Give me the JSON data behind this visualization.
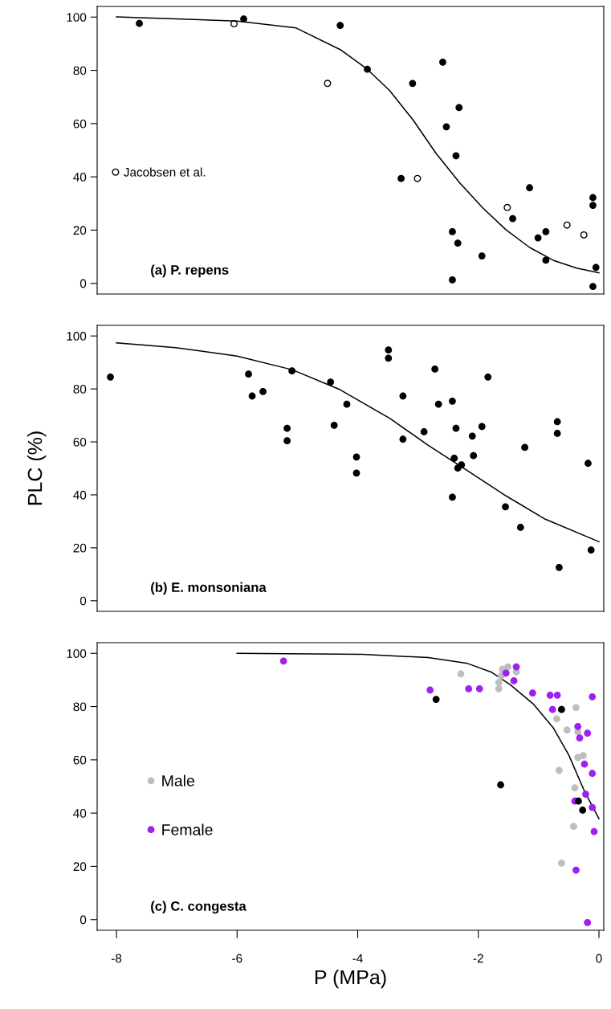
{
  "chart_data": [
    {
      "type": "scatter",
      "title": "(a) P. repens",
      "xlim": [
        -8.32,
        0.08
      ],
      "ylim": [
        -4,
        104
      ],
      "yticks": [
        0,
        20,
        40,
        60,
        80,
        100
      ],
      "tick_labels": "y",
      "grid": false,
      "legend": "left",
      "marker": "circle",
      "series": [
        {
          "color": "#000000",
          "x": [
            -7.62,
            -5.89,
            -4.29,
            -3.84,
            -3.28,
            -3.09,
            -2.59,
            -2.53,
            -2.32,
            -2.37,
            -2.43,
            -2.34,
            -2.43,
            -1.94,
            -1.43,
            -1.15,
            -1.01,
            -0.88,
            -0.88,
            -0.1,
            -0.1,
            -0.05,
            -0.1
          ],
          "values": [
            97.6,
            99.3,
            96.9,
            80.4,
            39.4,
            75.1,
            83.1,
            58.8,
            66.0,
            47.9,
            19.4,
            15.1,
            1.3,
            10.3,
            24.3,
            35.9,
            17.1,
            19.4,
            8.7,
            32.2,
            29.3,
            6.0,
            -1.2
          ]
        },
        {
          "name": "Jacobsen et al.",
          "color": "#000000",
          "marker": "open circle",
          "x": [
            -6.05,
            -4.5,
            -3.01,
            -1.52,
            -0.53,
            -0.25
          ],
          "values": [
            97.5,
            75.1,
            39.4,
            28.5,
            21.9,
            18.2
          ]
        },
        {
          "type": "line",
          "color": "#000000",
          "marker": "none",
          "line_style": "solid",
          "x": [
            -8,
            -6,
            -5.02,
            -4.29,
            -3.84,
            -3.47,
            -3.08,
            -2.7,
            -2.31,
            -1.92,
            -1.54,
            -1.15,
            -0.76,
            -0.37,
            0
          ],
          "values": [
            100.1,
            98.5,
            95.9,
            87.8,
            80.4,
            72.4,
            61.3,
            48.8,
            37.8,
            28.2,
            20.1,
            13.5,
            8.7,
            5.7,
            4.0
          ]
        }
      ]
    },
    {
      "type": "scatter",
      "title": "(b) E. monsoniana",
      "ylabel": "PLC (%)",
      "xlim": [
        -8.32,
        0.08
      ],
      "ylim": [
        -4,
        104
      ],
      "yticks": [
        0,
        20,
        40,
        60,
        80,
        100
      ],
      "tick_labels": "y",
      "grid": false,
      "marker": "circle",
      "series": [
        {
          "color": "#000000",
          "x": [
            -8.1,
            -5.81,
            -5.75,
            -5.57,
            -5.17,
            -5.17,
            -5.09,
            -4.45,
            -4.39,
            -4.18,
            -4.02,
            -4.02,
            -3.49,
            -3.49,
            -3.25,
            -3.25,
            -2.9,
            -2.72,
            -2.66,
            -2.43,
            -2.37,
            -2.4,
            -2.43,
            -2.34,
            -2.28,
            -2.1,
            -2.08,
            -1.94,
            -1.84,
            -1.55,
            -1.3,
            -1.23,
            -0.69,
            -0.69,
            -0.66,
            -0.18,
            -0.13
          ],
          "values": [
            84.5,
            85.6,
            77.3,
            79.0,
            65.1,
            60.4,
            86.8,
            82.6,
            66.3,
            74.2,
            54.3,
            48.2,
            94.7,
            91.6,
            77.3,
            61.0,
            63.8,
            87.5,
            74.2,
            75.4,
            65.1,
            53.8,
            39.1,
            50.1,
            51.3,
            62.2,
            54.8,
            65.8,
            84.5,
            35.5,
            27.7,
            57.9,
            67.6,
            63.2,
            12.6,
            51.9,
            19.2
          ]
        },
        {
          "type": "line",
          "color": "#000000",
          "marker": "none",
          "line_style": "solid",
          "x": [
            -8,
            -7.02,
            -6,
            -5.08,
            -4.31,
            -3.47,
            -2.83,
            -2.18,
            -1.54,
            -0.89,
            0
          ],
          "values": [
            97.4,
            95.6,
            92.4,
            87.2,
            79.9,
            68.9,
            58.7,
            49.1,
            39.6,
            30.8,
            22.3
          ]
        }
      ]
    },
    {
      "type": "scatter",
      "title": "(c) C. congesta",
      "xlabel": "P (MPa)",
      "xlim": [
        -8.32,
        0.08
      ],
      "xticks": [
        -8,
        -6,
        -4,
        -2,
        0
      ],
      "ylim": [
        -4,
        104
      ],
      "yticks": [
        0,
        20,
        40,
        60,
        80,
        100
      ],
      "grid": false,
      "legend": "left",
      "marker": "circle",
      "series": [
        {
          "name": "Male",
          "color": "#bebebe",
          "x": [
            -2.29,
            -1.66,
            -1.66,
            -1.62,
            -1.6,
            -1.51,
            -1.37,
            -0.38,
            -0.7,
            -0.53,
            -0.35,
            -0.35,
            -0.26,
            -0.66,
            -0.4,
            -0.42,
            -0.62
          ],
          "values": [
            92.3,
            86.7,
            89.0,
            91.5,
            94.0,
            94.9,
            93.0,
            79.6,
            75.4,
            71.2,
            70.5,
            60.9,
            61.6,
            56.1,
            49.5,
            35.0,
            21.2
          ]
        },
        {
          "name": "Female",
          "color": "#a020f0",
          "x": [
            -5.23,
            -2.8,
            -2.16,
            -1.98,
            -1.54,
            -1.37,
            -1.41,
            -1.1,
            -0.81,
            -0.69,
            -0.77,
            -0.11,
            -0.35,
            -0.32,
            -0.19,
            -0.24,
            -0.11,
            -0.22,
            -0.4,
            -0.11,
            -0.08,
            -0.38,
            -0.19
          ],
          "values": [
            97.1,
            86.2,
            86.7,
            86.7,
            92.6,
            94.9,
            89.7,
            85.1,
            84.3,
            84.3,
            78.9,
            83.7,
            72.5,
            68.2,
            70.0,
            58.4,
            54.9,
            47.1,
            44.5,
            42.1,
            33.1,
            18.6,
            -1.1
          ]
        },
        {
          "color": "#000000",
          "x": [
            -2.7,
            -1.63,
            -0.62,
            -0.34,
            -0.27
          ],
          "values": [
            82.7,
            50.6,
            78.9,
            44.5,
            41.1
          ]
        },
        {
          "type": "line",
          "color": "#000000",
          "marker": "none",
          "line_style": "solid",
          "x": [
            -6,
            -3.92,
            -2.83,
            -2.18,
            -1.79,
            -1.47,
            -1.08,
            -0.76,
            -0.5,
            -0.25,
            0
          ],
          "values": [
            100,
            99.6,
            98.4,
            96.2,
            93.0,
            88.2,
            80.8,
            72.1,
            61.8,
            48.7,
            37.9
          ]
        }
      ]
    }
  ]
}
